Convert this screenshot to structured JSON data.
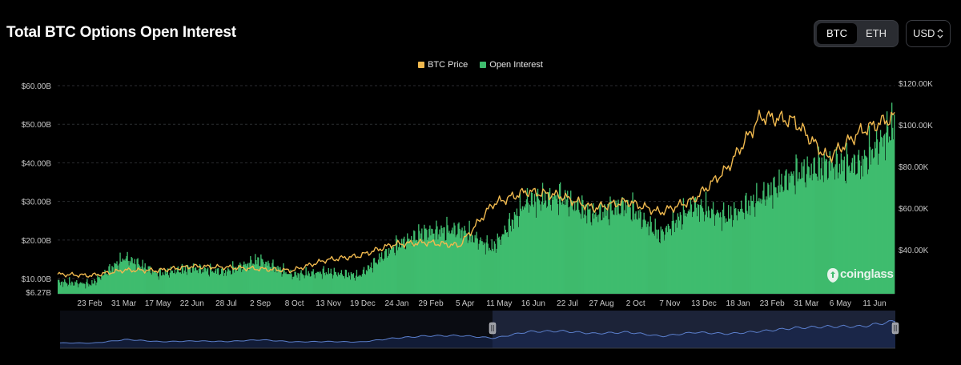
{
  "title": "Total BTC Options Open Interest",
  "asset_toggle": {
    "options": [
      "BTC",
      "ETH"
    ],
    "selected": "BTC"
  },
  "currency": {
    "value": "USD"
  },
  "legend": [
    {
      "label": "BTC Price",
      "color": "#f0b94f"
    },
    {
      "label": "Open Interest",
      "color": "#3fbc6e"
    }
  ],
  "watermark": "coinglass",
  "colors": {
    "background": "#000000",
    "price": "#f0b94f",
    "oi": "#3fbc6e",
    "navigator": "#5b7fcc"
  },
  "chart_data": {
    "type": "bar",
    "combined_with": "line",
    "left_axis": {
      "ticks": [
        6.27,
        10,
        20,
        30,
        40,
        50,
        60
      ],
      "tick_labels": [
        "$6.27B",
        "$10.00B",
        "$20.00B",
        "$30.00B",
        "$40.00B",
        "$50.00B",
        "$60.00B"
      ],
      "range": [
        6.27,
        60
      ]
    },
    "right_axis": {
      "ticks": [
        40,
        60,
        80,
        100,
        120
      ],
      "tick_labels": [
        "$40.00K",
        "$60.00K",
        "$80.00K",
        "$100.00K",
        "$120.00K"
      ],
      "range": [
        26,
        120
      ]
    },
    "x_tick_labels": [
      "23 Feb",
      "31 Mar",
      "17 May",
      "22 Jun",
      "28 Jul",
      "2 Sep",
      "8 Oct",
      "13 Nov",
      "19 Dec",
      "24 Jan",
      "29 Feb",
      "5 Apr",
      "11 May",
      "16 Jun",
      "22 Jul",
      "27 Aug",
      "2 Oct",
      "7 Nov",
      "13 Dec",
      "18 Jan",
      "23 Feb",
      "31 Mar",
      "6 May",
      "11 Jun"
    ],
    "grid": true,
    "legend_position": "top-center",
    "series": [
      {
        "name": "Open Interest",
        "axis": "left",
        "unit": "B USD",
        "x_index": [
          0,
          1,
          2,
          3,
          4,
          5,
          6,
          7,
          8,
          9,
          10,
          11,
          12,
          13,
          14,
          15,
          16,
          17,
          18,
          19,
          20,
          21,
          22,
          23,
          24,
          25
        ],
        "values": [
          8.2,
          7.8,
          14.0,
          10.2,
          11.5,
          10.6,
          13.5,
          9.9,
          10.6,
          9.7,
          16.3,
          20.1,
          20.6,
          16.2,
          27.2,
          28.2,
          24.0,
          26.4,
          19.3,
          26.2,
          23.5,
          28.0,
          33.5,
          35.8,
          36.0,
          45.0
        ]
      },
      {
        "name": "BTC Price",
        "axis": "right",
        "unit": "K USD",
        "x_index": [
          0,
          1,
          2,
          3,
          4,
          5,
          6,
          7,
          8,
          9,
          10,
          11,
          12,
          13,
          14,
          15,
          16,
          17,
          18,
          19,
          20,
          21,
          22,
          23,
          24,
          25
        ],
        "values": [
          28.2,
          27.6,
          30.2,
          30.0,
          32.0,
          31.6,
          30.8,
          30.0,
          35.0,
          37.0,
          42.5,
          43.5,
          42.0,
          62.0,
          68.0,
          66.0,
          60.0,
          63.2,
          58.0,
          64.0,
          79.0,
          104.0,
          102.0,
          84.0,
          97.0,
          104.0
        ]
      }
    ],
    "navigator": {
      "visible_range": "right-half"
    }
  }
}
